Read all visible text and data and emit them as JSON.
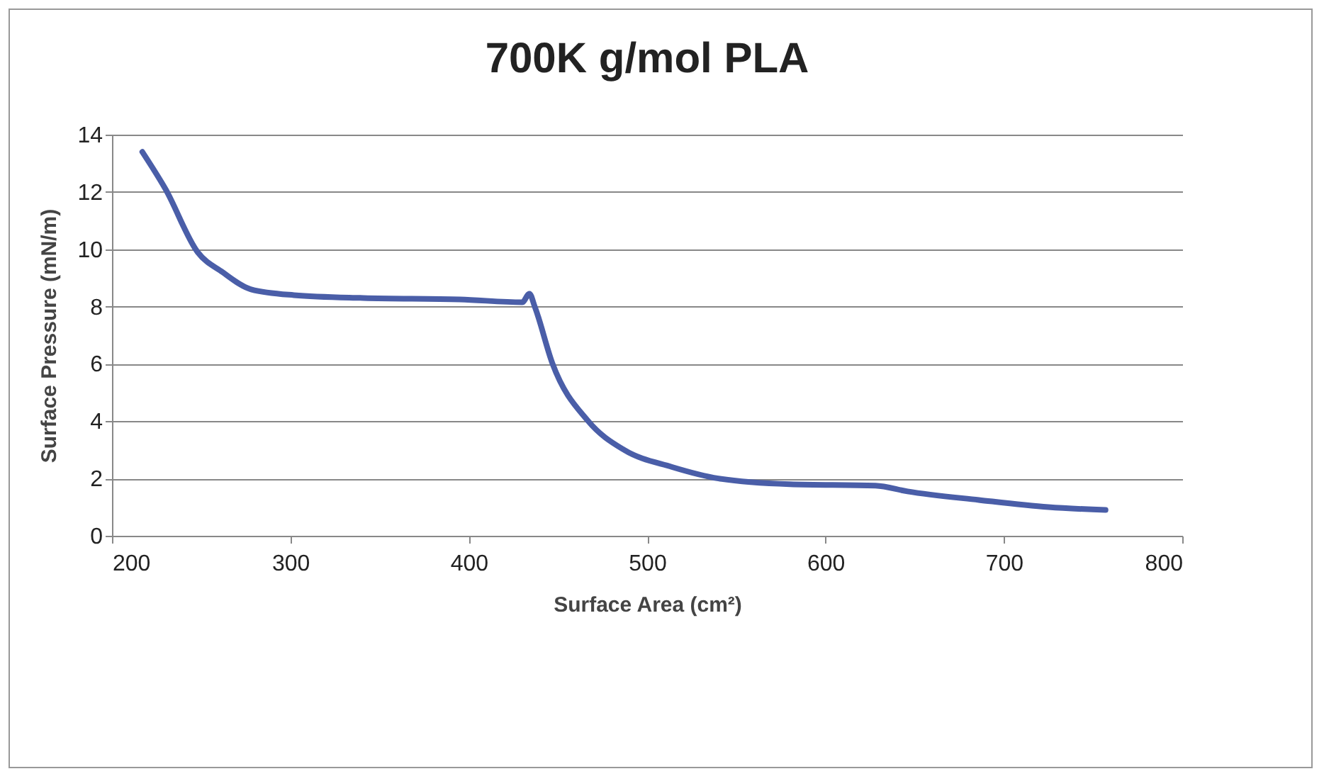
{
  "chart_data": {
    "type": "line",
    "title": "700K g/mol PLA",
    "xlabel": "Surface Area (cm²)",
    "ylabel": "Surface Pressure (mN/m)",
    "xlim": [
      200,
      800
    ],
    "xticks": [
      200,
      300,
      400,
      500,
      600,
      700,
      800
    ],
    "ylim": [
      0,
      14
    ],
    "yticks": [
      0,
      2,
      4,
      6,
      8,
      10,
      12,
      14
    ],
    "grid": "y",
    "marker": "none",
    "line_style": "solid",
    "series": [
      {
        "color": "#4a5ea8",
        "x": [
          217,
          230,
          248,
          262,
          278,
          302,
          341,
          395,
          430,
          434,
          437,
          447,
          467,
          487,
          514,
          540,
          580,
          628,
          646,
          686,
          725,
          757
        ],
        "values": [
          13.4,
          12.1,
          9.9,
          9.2,
          8.6,
          8.4,
          8.3,
          8.25,
          8.15,
          8.45,
          8.0,
          6.0,
          4.0,
          3.0,
          2.4,
          2.0,
          1.8,
          1.75,
          1.55,
          1.25,
          1.0,
          0.9
        ]
      }
    ]
  }
}
